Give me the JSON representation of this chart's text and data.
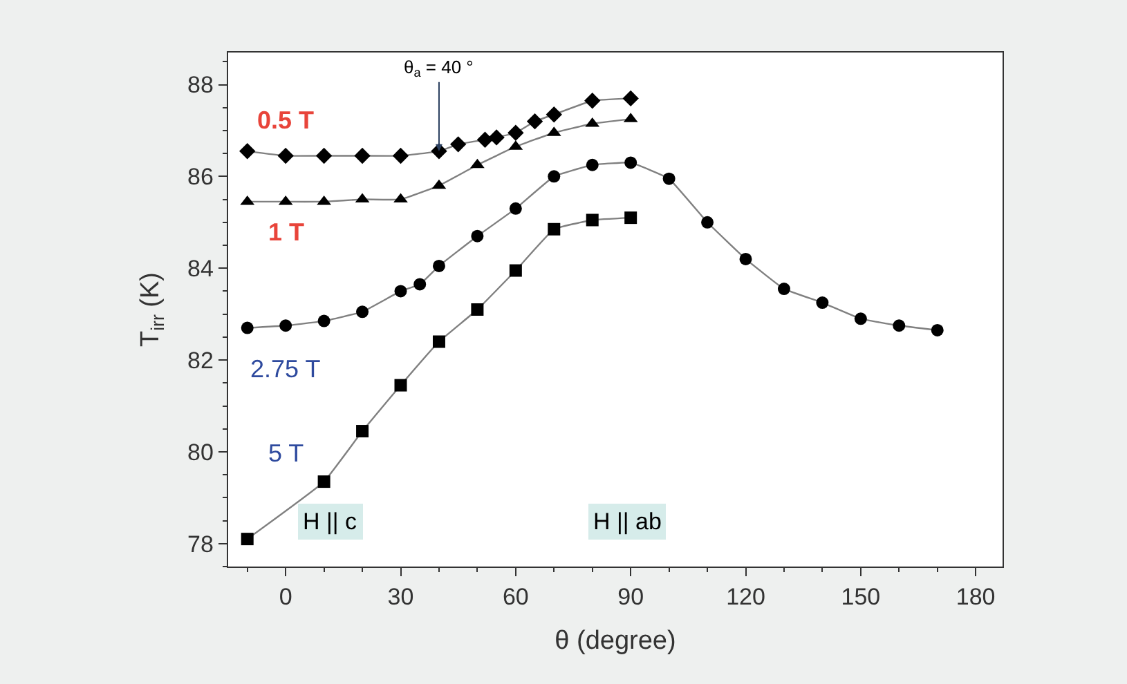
{
  "chart_data": {
    "type": "line",
    "xlabel": "θ (degree)",
    "ylabel": "T$_{irr}$ (K)",
    "xlim": [
      -15,
      187
    ],
    "xticks": [
      0,
      30,
      60,
      90,
      120,
      150,
      180
    ],
    "ylim": [
      77.5,
      88.7
    ],
    "yticks": [
      78,
      80,
      82,
      84,
      86,
      88
    ],
    "legend": false,
    "line_style": "solid",
    "series": [
      {
        "name": "0.5 T",
        "color": "#000000",
        "marker": "diamond",
        "x": [
          -10,
          0,
          10,
          20,
          30,
          40,
          45,
          52,
          55,
          60,
          65,
          70,
          80,
          90
        ],
        "values": [
          86.55,
          86.45,
          86.45,
          86.45,
          86.45,
          86.55,
          86.7,
          86.8,
          86.85,
          86.95,
          87.2,
          87.35,
          87.65,
          87.7
        ]
      },
      {
        "name": "1 T",
        "color": "#000000",
        "marker": "triangle",
        "x": [
          -10,
          0,
          10,
          20,
          30,
          40,
          50,
          60,
          70,
          80,
          90
        ],
        "values": [
          85.45,
          85.45,
          85.45,
          85.5,
          85.5,
          85.8,
          86.25,
          86.65,
          86.95,
          87.15,
          87.25
        ]
      },
      {
        "name": "2.75 T",
        "color": "#000000",
        "marker": "circle",
        "x": [
          -10,
          0,
          10,
          20,
          30,
          35,
          40,
          50,
          60,
          70,
          80,
          90,
          100,
          110,
          120,
          130,
          140,
          150,
          160,
          170
        ],
        "values": [
          82.7,
          82.75,
          82.85,
          83.05,
          83.5,
          83.65,
          84.05,
          84.7,
          85.3,
          86.0,
          86.25,
          86.3,
          85.95,
          85.0,
          84.2,
          83.55,
          83.25,
          82.9,
          82.75,
          82.65
        ]
      },
      {
        "name": "5 T",
        "color": "#000000",
        "marker": "square",
        "x": [
          -10,
          10,
          20,
          30,
          40,
          50,
          60,
          70,
          80,
          90
        ],
        "values": [
          78.1,
          79.35,
          80.45,
          81.45,
          82.4,
          83.1,
          83.95,
          84.85,
          85.05,
          85.1
        ]
      }
    ],
    "annotations": [
      {
        "text": "θ$_{a}$ = 40 °",
        "x": 40,
        "y": 86.55
      },
      "H || c",
      "H || ab"
    ]
  }
}
